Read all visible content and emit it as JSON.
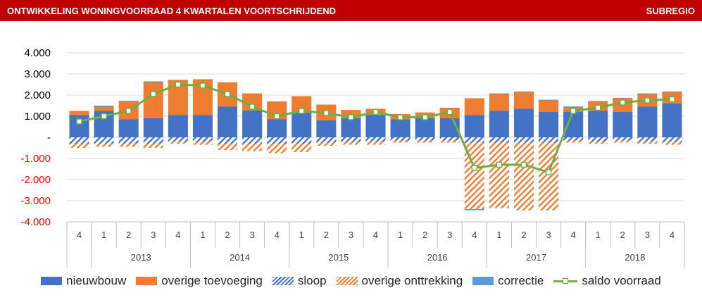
{
  "header": {
    "title": "ONTWIKKELING WONINGVOORRAAD 4 KWARTALEN VOORTSCHRIJDEND",
    "region": "SUBREGIO"
  },
  "colors": {
    "banner": "#c00000",
    "nieuwbouw": "#4472c4",
    "overige_toevoeging": "#ed7d31",
    "sloop": "#4472c4",
    "overige_onttrekking": "#ed7d31",
    "correctie": "#5b9bd5",
    "saldo": "#70ad47"
  },
  "chart_data": {
    "type": "bar",
    "stacked": true,
    "y_ticks": [
      "4.000",
      "3.000",
      "2.000",
      "1.000",
      "-",
      "-1.000",
      "-2.000",
      "-3.000",
      "-4.000"
    ],
    "ylim": [
      -4000,
      4000
    ],
    "grid": true,
    "legend_position": "bottom",
    "categories": [
      "4",
      "1",
      "2",
      "3",
      "4",
      "1",
      "2",
      "3",
      "4",
      "1",
      "2",
      "3",
      "4",
      "1",
      "2",
      "3",
      "4",
      "1",
      "2",
      "3",
      "4",
      "1",
      "2",
      "3",
      "4"
    ],
    "year_groups": [
      {
        "label": "2013",
        "start": 1,
        "count": 4
      },
      {
        "label": "2014",
        "start": 5,
        "count": 4
      },
      {
        "label": "2015",
        "start": 9,
        "count": 4
      },
      {
        "label": "2016",
        "start": 13,
        "count": 4
      },
      {
        "label": "2017",
        "start": 17,
        "count": 4
      },
      {
        "label": "2018",
        "start": 21,
        "count": 4
      }
    ],
    "series": [
      {
        "name": "nieuwbouw",
        "kind": "bar",
        "pattern": "solid",
        "values": [
          1050,
          1250,
          850,
          900,
          1050,
          1050,
          1450,
          1280,
          850,
          1150,
          800,
          900,
          1050,
          850,
          900,
          900,
          1050,
          1250,
          1350,
          1200,
          1200,
          1250,
          1200,
          1450,
          1600
        ]
      },
      {
        "name": "overige toevoeging",
        "kind": "bar",
        "pattern": "solid",
        "values": [
          200,
          200,
          850,
          1700,
          1650,
          1700,
          1150,
          800,
          850,
          800,
          750,
          400,
          300,
          250,
          280,
          500,
          800,
          800,
          800,
          550,
          200,
          450,
          650,
          600,
          550
        ]
      },
      {
        "name": "sloop",
        "kind": "bar",
        "pattern": "hatch",
        "values": [
          -300,
          -300,
          -300,
          -300,
          -200,
          -200,
          -300,
          -300,
          -300,
          -300,
          -250,
          -200,
          -200,
          -150,
          -150,
          -150,
          -250,
          -250,
          -250,
          -250,
          -150,
          -200,
          -150,
          -200,
          -200
        ]
      },
      {
        "name": "overige onttrekking",
        "kind": "bar",
        "pattern": "hatch",
        "values": [
          -200,
          -150,
          -150,
          -200,
          -100,
          -150,
          -300,
          -350,
          -450,
          -400,
          -150,
          -150,
          -150,
          -100,
          -100,
          -100,
          -3150,
          -3100,
          -3200,
          -3200,
          -100,
          -100,
          -100,
          -100,
          -150
        ]
      },
      {
        "name": "correctie",
        "kind": "bar",
        "pattern": "solid",
        "values": [
          0,
          50,
          30,
          50,
          20,
          0,
          0,
          0,
          0,
          0,
          0,
          0,
          0,
          0,
          0,
          0,
          -50,
          30,
          20,
          30,
          60,
          20,
          20,
          30,
          20
        ]
      },
      {
        "name": "saldo voorraad",
        "kind": "line",
        "values": [
          750,
          1000,
          1250,
          2050,
          2500,
          2450,
          2050,
          1450,
          1000,
          1250,
          1150,
          950,
          1200,
          950,
          950,
          1200,
          -1450,
          -1300,
          -1300,
          -1650,
          1250,
          1400,
          1650,
          1750,
          1800
        ]
      }
    ]
  },
  "legend": {
    "items": [
      {
        "label": "nieuwbouw",
        "pattern": "solid",
        "color": "#4472c4"
      },
      {
        "label": "overige toevoeging",
        "pattern": "solid",
        "color": "#ed7d31"
      },
      {
        "label": "sloop",
        "pattern": "hatch",
        "color": "#4472c4"
      },
      {
        "label": "overige onttrekking",
        "pattern": "hatch",
        "color": "#ed7d31"
      },
      {
        "label": "correctie",
        "pattern": "solid",
        "color": "#5b9bd5"
      },
      {
        "label": "saldo voorraad",
        "pattern": "line",
        "color": "#70ad47"
      }
    ]
  }
}
